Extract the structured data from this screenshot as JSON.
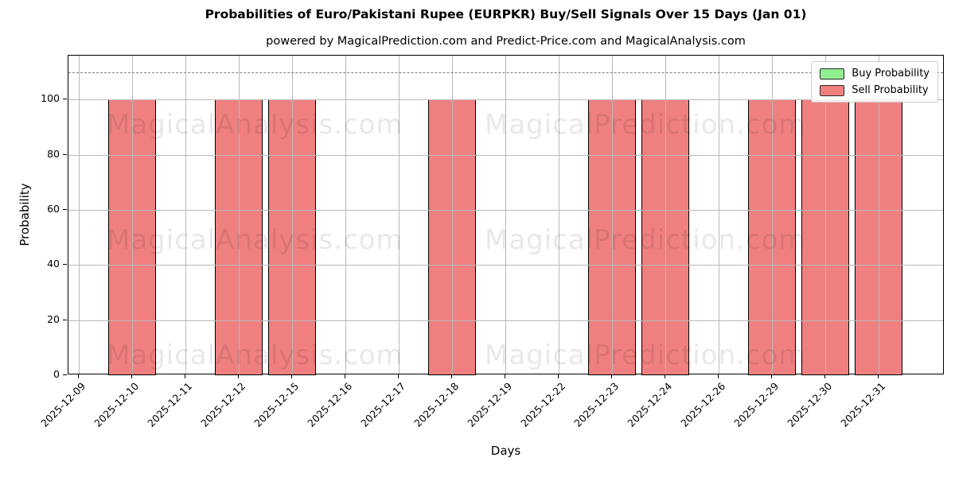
{
  "chart_data": {
    "type": "bar",
    "title": "Probabilities of Euro/Pakistani Rupee (EURPKR) Buy/Sell Signals Over 15 Days (Jan 01)",
    "subtitle": "powered by MagicalPrediction.com and Predict-Price.com and MagicalAnalysis.com",
    "xlabel": "Days",
    "ylabel": "Probability",
    "categories": [
      "2025-12-09",
      "2025-12-10",
      "2025-12-11",
      "2025-12-12",
      "2025-12-15",
      "2025-12-16",
      "2025-12-17",
      "2025-12-18",
      "2025-12-19",
      "2025-12-22",
      "2025-12-23",
      "2025-12-24",
      "2025-12-26",
      "2025-12-29",
      "2025-12-30",
      "2025-12-31"
    ],
    "series": [
      {
        "name": "Buy Probability",
        "color": "#90EE90",
        "values": [
          0,
          0,
          0,
          0,
          0,
          0,
          0,
          0,
          0,
          0,
          0,
          0,
          0,
          0,
          0,
          0
        ]
      },
      {
        "name": "Sell Probability",
        "color": "#F08080",
        "values": [
          0,
          100,
          0,
          100,
          100,
          0,
          0,
          100,
          0,
          0,
          100,
          100,
          0,
          100,
          100,
          100
        ]
      }
    ],
    "yticks": [
      0,
      20,
      40,
      60,
      80,
      100
    ],
    "ylim": [
      0,
      116
    ],
    "dashed_line_y": 110,
    "grid": true,
    "legend_position": "upper right",
    "bar_edge_color": "#000000",
    "grid_color": "#b9b9b9",
    "watermarks": [
      "MagicalAnalysis.com",
      "MagicalPrediction.com"
    ]
  }
}
